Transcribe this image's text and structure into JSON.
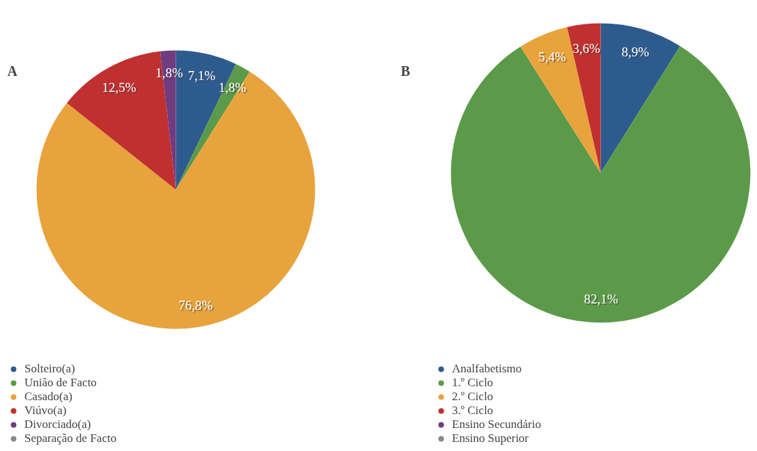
{
  "chart_data": [
    {
      "type": "pie",
      "title": "A",
      "categories": [
        "Solteiro(a)",
        "União de Facto",
        "Casado(a)",
        "Viúvo(a)",
        "Divorciado(a)",
        "Separação de Facto"
      ],
      "values": [
        7.1,
        1.8,
        76.8,
        12.5,
        1.8,
        0
      ],
      "colors": [
        "#2e5b8e",
        "#5b9a49",
        "#e8a33d",
        "#c0302f",
        "#6f3c7f",
        "#888888"
      ],
      "value_labels": [
        "7,1%",
        "1,8%",
        "76,8%",
        "12,5%",
        "1,8%",
        null
      ],
      "legend": "bottom"
    },
    {
      "type": "pie",
      "title": "B",
      "categories": [
        "Analfabetismo",
        "1.º Ciclo",
        "2.º Ciclo",
        "3.º Ciclo",
        "Ensino Secundário",
        "Ensino Superior"
      ],
      "values": [
        8.9,
        82.1,
        5.4,
        3.6,
        0,
        0
      ],
      "colors": [
        "#2e5b8e",
        "#5b9a49",
        "#e8a33d",
        "#c0302f",
        "#6f3c7f",
        "#888888"
      ],
      "value_labels": [
        "8,9%",
        "82,1%",
        "5,4%",
        "3,6%",
        null,
        null
      ],
      "legend": "bottom"
    }
  ]
}
